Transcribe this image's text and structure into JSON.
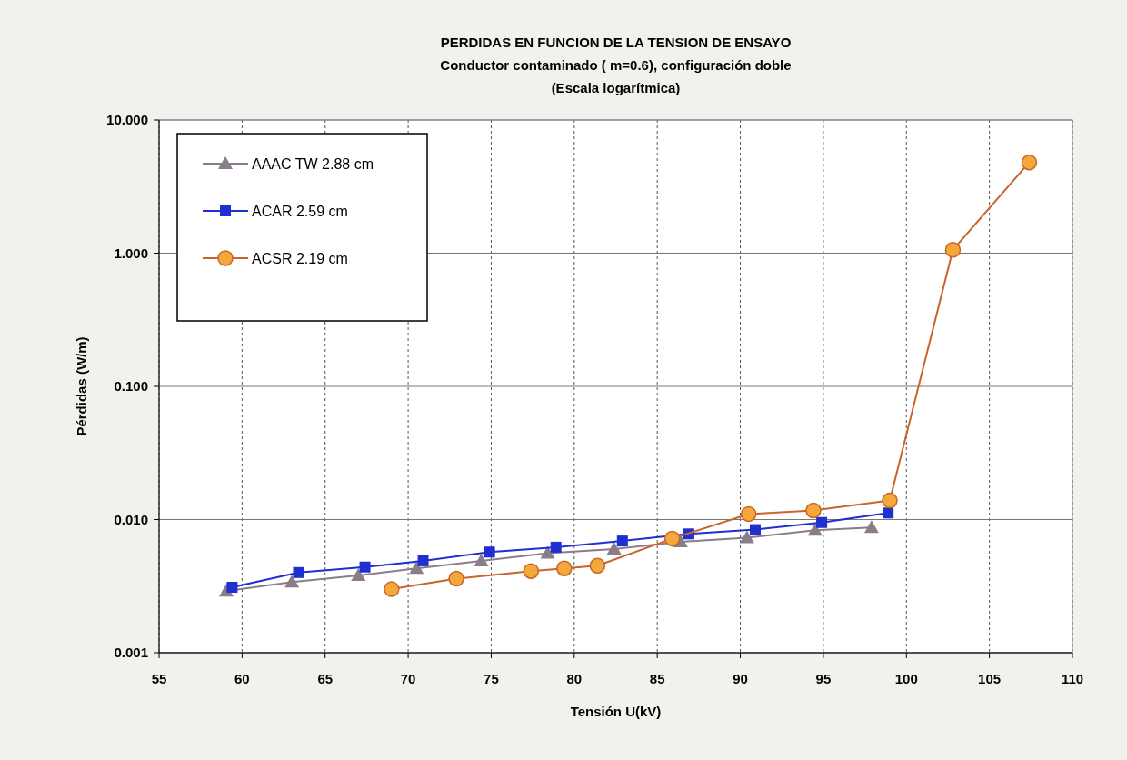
{
  "chart_data": {
    "type": "line",
    "title": "PERDIDAS EN FUNCION DE LA TENSION DE ENSAYO",
    "subtitle": "Conductor contaminado ( m=0.6), configuración doble",
    "annotations": [
      "(Escala logarítmica)"
    ],
    "xlabel": "Tensión U(kV)",
    "ylabel": "Pérdidas  (W/m)",
    "log": "y",
    "xlim": [
      55,
      110
    ],
    "xticks": [
      55,
      60,
      65,
      70,
      75,
      80,
      85,
      90,
      95,
      100,
      105,
      110
    ],
    "ylim": [
      0.001,
      10
    ],
    "yticks": [
      {
        "value": 0.001,
        "label": "0.001"
      },
      {
        "value": 0.01,
        "label": "0.010"
      },
      {
        "value": 0.1,
        "label": "0.100"
      },
      {
        "value": 1,
        "label": "1.000"
      },
      {
        "value": 10,
        "label": "10.000"
      }
    ],
    "grid": true,
    "legend": "top left",
    "series": [
      {
        "name": "AAAC TW 2.88 cm",
        "color": "#8a7d8a",
        "marker": "triangle",
        "x": [
          59.05,
          63.0,
          67.0,
          70.5,
          74.4,
          78.4,
          82.4,
          86.4,
          90.4,
          94.5,
          97.9
        ],
        "values": [
          0.0029,
          0.0034,
          0.0038,
          0.0043,
          0.0049,
          0.0056,
          0.006,
          0.0068,
          0.0073,
          0.0083,
          0.0087
        ]
      },
      {
        "name": "ACAR 2.59 cm",
        "color": "#1f2fd0",
        "marker": "square",
        "x": [
          59.4,
          63.4,
          67.4,
          70.9,
          74.9,
          78.9,
          82.9,
          86.9,
          90.9,
          94.9,
          98.9
        ],
        "values": [
          0.0031,
          0.004,
          0.0044,
          0.0049,
          0.0057,
          0.0062,
          0.0069,
          0.0078,
          0.0084,
          0.0095,
          0.0112
        ]
      },
      {
        "name": "ACSR 2.19 cm",
        "color": "#c8642c",
        "marker": "circle",
        "x": [
          69.0,
          72.9,
          77.4,
          79.4,
          81.4,
          85.9,
          90.5,
          94.4,
          99.0,
          102.8,
          107.4
        ],
        "values": [
          0.003,
          0.0036,
          0.0041,
          0.0043,
          0.0045,
          0.0072,
          0.011,
          0.0117,
          0.0139,
          1.06,
          4.8
        ]
      }
    ]
  }
}
